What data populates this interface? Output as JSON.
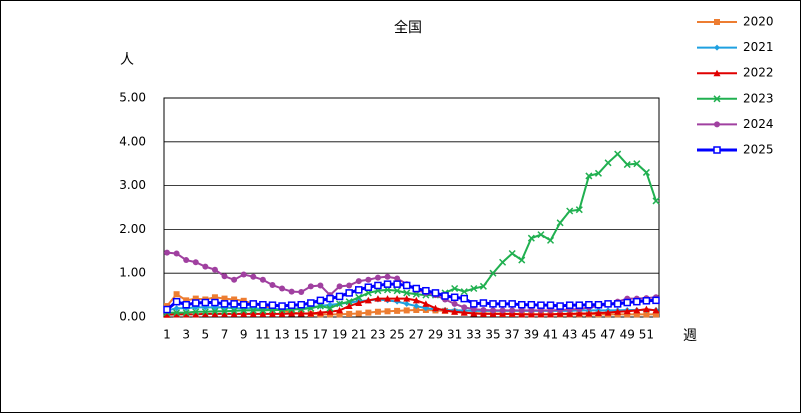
{
  "chart_data": {
    "type": "line",
    "title": "全国",
    "ylabel": "人",
    "xlabel": "週",
    "categories": [
      1,
      null,
      3,
      null,
      5,
      null,
      7,
      null,
      9,
      null,
      11,
      null,
      13,
      null,
      15,
      null,
      17,
      null,
      19,
      null,
      21,
      null,
      23,
      null,
      25,
      null,
      27,
      null,
      29,
      null,
      31,
      null,
      33,
      null,
      35,
      null,
      37,
      null,
      39,
      null,
      41,
      null,
      43,
      null,
      45,
      null,
      47,
      null,
      49,
      null,
      51,
      null
    ],
    "ylim": [
      0,
      5
    ],
    "yticks": [
      {
        "value": 0,
        "label": "0.00"
      },
      {
        "value": 1,
        "label": "1.00"
      },
      {
        "value": 2,
        "label": "2.00"
      },
      {
        "value": 3,
        "label": "3.00"
      },
      {
        "value": 4,
        "label": "4.00"
      },
      {
        "value": 5,
        "label": "5.00"
      }
    ],
    "grid": true,
    "legend": "right",
    "series": [
      {
        "name": "2020",
        "color": "#ed7d31",
        "marker": "square",
        "values": [
          0.25,
          0.52,
          0.38,
          0.42,
          0.4,
          0.45,
          0.42,
          0.4,
          0.37,
          0.3,
          0.25,
          0.2,
          0.15,
          0.1,
          0.08,
          0.07,
          0.06,
          0.06,
          0.06,
          0.07,
          0.08,
          0.1,
          0.12,
          0.13,
          0.14,
          0.15,
          0.16,
          0.16,
          0.15,
          0.14,
          0.12,
          0.1,
          0.09,
          0.08,
          0.08,
          0.07,
          0.07,
          0.07,
          0.06,
          0.06,
          0.06,
          0.06,
          0.06,
          0.06,
          0.06,
          0.06,
          0.06,
          0.06,
          0.06,
          0.06,
          0.06,
          0.06
        ]
      },
      {
        "name": "2021",
        "color": "#1fa0e0",
        "marker": "diamond",
        "values": [
          0.15,
          0.2,
          0.2,
          0.22,
          0.22,
          0.22,
          0.22,
          0.2,
          0.2,
          0.2,
          0.18,
          0.18,
          0.18,
          0.18,
          0.2,
          0.22,
          0.25,
          0.28,
          0.3,
          0.33,
          0.36,
          0.38,
          0.4,
          0.38,
          0.35,
          0.3,
          0.25,
          0.2,
          0.18,
          0.16,
          0.15,
          0.15,
          0.14,
          0.14,
          0.14,
          0.14,
          0.14,
          0.14,
          0.14,
          0.14,
          0.14,
          0.14,
          0.14,
          0.15,
          0.15,
          0.15,
          0.15,
          0.15,
          0.16,
          0.16,
          0.16,
          0.16
        ]
      },
      {
        "name": "2022",
        "color": "#e00000",
        "marker": "triangle",
        "values": [
          0.05,
          0.06,
          0.06,
          0.06,
          0.07,
          0.07,
          0.07,
          0.07,
          0.07,
          0.07,
          0.07,
          0.07,
          0.07,
          0.08,
          0.08,
          0.08,
          0.1,
          0.12,
          0.15,
          0.25,
          0.32,
          0.38,
          0.42,
          0.42,
          0.42,
          0.42,
          0.38,
          0.3,
          0.2,
          0.15,
          0.12,
          0.1,
          0.08,
          0.07,
          0.07,
          0.07,
          0.07,
          0.06,
          0.06,
          0.06,
          0.06,
          0.07,
          0.07,
          0.08,
          0.08,
          0.09,
          0.1,
          0.12,
          0.13,
          0.15,
          0.18,
          0.15
        ]
      },
      {
        "name": "2023",
        "color": "#20b050",
        "marker": "x",
        "values": [
          0.1,
          0.1,
          0.1,
          0.12,
          0.12,
          0.13,
          0.13,
          0.14,
          0.15,
          0.15,
          0.15,
          0.16,
          0.16,
          0.17,
          0.18,
          0.2,
          0.25,
          0.2,
          0.3,
          0.35,
          0.45,
          0.55,
          0.6,
          0.62,
          0.6,
          0.55,
          0.52,
          0.5,
          0.5,
          0.55,
          0.65,
          0.58,
          0.65,
          0.7,
          1.0,
          1.25,
          1.45,
          1.3,
          1.8,
          1.88,
          1.75,
          2.15,
          2.42,
          2.45,
          3.22,
          3.28,
          3.52,
          3.72,
          3.48,
          3.5,
          3.3,
          2.65
        ]
      },
      {
        "name": "2024",
        "color": "#a040a0",
        "marker": "circle",
        "values": [
          1.47,
          1.45,
          1.3,
          1.25,
          1.15,
          1.08,
          0.93,
          0.85,
          0.97,
          0.92,
          0.85,
          0.73,
          0.65,
          0.58,
          0.57,
          0.7,
          0.72,
          0.5,
          0.7,
          0.72,
          0.82,
          0.85,
          0.9,
          0.92,
          0.88,
          0.75,
          0.62,
          0.55,
          0.5,
          0.4,
          0.3,
          0.22,
          0.18,
          0.16,
          0.15,
          0.15,
          0.15,
          0.15,
          0.15,
          0.15,
          0.15,
          0.16,
          0.17,
          0.18,
          0.22,
          0.25,
          0.28,
          0.35,
          0.42,
          0.42,
          0.43,
          0.45
        ]
      },
      {
        "name": "2025",
        "color": "#0000ff",
        "marker": "hollow-square",
        "values": [
          0.17,
          0.35,
          0.28,
          0.32,
          0.33,
          0.33,
          0.3,
          0.3,
          0.28,
          0.3,
          0.28,
          0.27,
          0.25,
          0.27,
          0.28,
          0.32,
          0.38,
          0.42,
          0.47,
          0.55,
          0.62,
          0.68,
          0.72,
          0.75,
          0.75,
          0.72,
          0.65,
          0.6,
          0.55,
          0.48,
          0.45,
          0.42,
          0.3,
          0.32,
          0.3,
          0.3,
          0.3,
          0.28,
          0.28,
          0.27,
          0.27,
          0.25,
          0.27,
          0.27,
          0.28,
          0.28,
          0.3,
          0.3,
          0.33,
          0.35,
          0.37,
          0.38
        ]
      }
    ]
  }
}
